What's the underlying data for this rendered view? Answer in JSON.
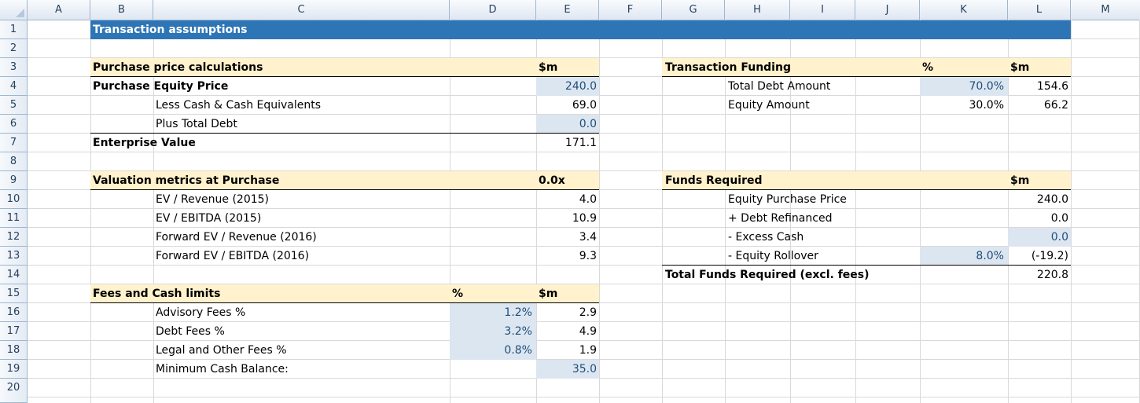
{
  "column_headers": [
    "A",
    "B",
    "C",
    "D",
    "E",
    "F",
    "G",
    "H",
    "I",
    "J",
    "K",
    "L",
    "M"
  ],
  "row_headers": [
    "1",
    "2",
    "3",
    "4",
    "5",
    "6",
    "7",
    "8",
    "9",
    "10",
    "11",
    "12",
    "13",
    "14",
    "15",
    "16",
    "17",
    "18",
    "19",
    "20"
  ],
  "title": "Transaction assumptions",
  "purchase": {
    "header": "Purchase price calculations",
    "unit": "$m",
    "equity_price_label": "Purchase Equity Price",
    "equity_price": "240.0",
    "less_cash_label": "Less Cash & Cash Equivalents",
    "less_cash": "69.0",
    "plus_debt_label": "Plus Total Debt",
    "plus_debt": "0.0",
    "ev_label": "Enterprise Value",
    "ev": "171.1"
  },
  "valuation": {
    "header": "Valuation metrics at Purchase",
    "unit": "0.0x",
    "rows": [
      {
        "label": "EV / Revenue (2015)",
        "value": "4.0"
      },
      {
        "label": "EV / EBITDA (2015)",
        "value": "10.9"
      },
      {
        "label": "Forward EV / Revenue (2016)",
        "value": "3.4"
      },
      {
        "label": "Forward EV / EBITDA (2016)",
        "value": "9.3"
      }
    ]
  },
  "fees": {
    "header": "Fees and Cash limits",
    "pct_header": "%",
    "unit": "$m",
    "rows": [
      {
        "label": "Advisory Fees %",
        "pct": "1.2%",
        "value": "2.9"
      },
      {
        "label": "Debt Fees %",
        "pct": "3.2%",
        "value": "4.9"
      },
      {
        "label": "Legal and Other Fees %",
        "pct": "0.8%",
        "value": "1.9"
      }
    ],
    "min_cash_label": "Minimum Cash Balance:",
    "min_cash": "35.0"
  },
  "funding": {
    "header": "Transaction Funding",
    "pct_header": "%",
    "unit": "$m",
    "debt_label": "Total Debt Amount",
    "debt_pct": "70.0%",
    "debt_value": "154.6",
    "equity_label": "Equity Amount",
    "equity_pct": "30.0%",
    "equity_value": "66.2"
  },
  "funds_required": {
    "header": "Funds Required",
    "unit": "$m",
    "equity_price_label": "Equity Purchase Price",
    "equity_price": "240.0",
    "debt_refi_label": "+ Debt Refinanced",
    "debt_refi": "0.0",
    "excess_cash_label": "- Excess Cash",
    "excess_cash": "0.0",
    "rollover_label": "- Equity Rollover",
    "rollover_pct": "8.0%",
    "rollover_value": "(-19.2)",
    "total_label": "Total Funds Required (excl. fees)",
    "total": "220.8"
  },
  "colors": {
    "title_bar": "#2e75b6",
    "section_header": "#fff2cc",
    "input_cell": "#dce6f1",
    "input_text": "#1f4e79"
  }
}
